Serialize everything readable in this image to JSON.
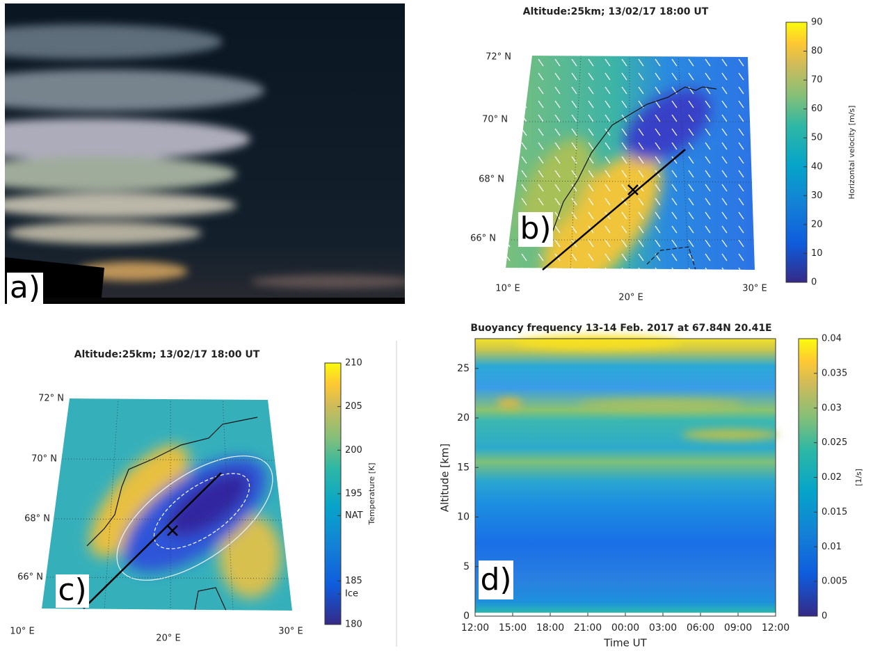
{
  "panels": {
    "a": {
      "label": "a)"
    },
    "b": {
      "label": "b)",
      "title": "Altitude:25km; 13/02/17 18:00 UT",
      "lat_labels": [
        "72° N",
        "70° N",
        "68° N",
        "66° N"
      ],
      "lon_labels": [
        "10° E",
        "20° E",
        "30° E"
      ],
      "colorbar": {
        "label": "Horizontal velocity [m/s]",
        "lim": [
          0,
          90
        ],
        "ticks": [
          0,
          10,
          20,
          30,
          40,
          50,
          60,
          70,
          80,
          90
        ]
      }
    },
    "c": {
      "label": "c)",
      "title": "Altitude:25km; 13/02/17 18:00 UT",
      "lat_labels": [
        "72° N",
        "70° N",
        "68° N",
        "66° N"
      ],
      "lon_labels": [
        "10° E",
        "20° E",
        "30° E"
      ],
      "colorbar": {
        "label": "Temperature [K]",
        "lim": [
          180,
          210
        ],
        "ticks": [
          180,
          {
            "value": 183.5,
            "label": "Ice"
          },
          185,
          {
            "value": 192.5,
            "label": "NAT"
          },
          195,
          200,
          205,
          210
        ]
      }
    },
    "d": {
      "label": "d)",
      "title": "Buoyancy frequency 13-14 Feb. 2017 at 67.84N 20.41E",
      "x_label": "Time UT",
      "y_label": "Altitude [km]",
      "xlim": [
        0,
        24
      ],
      "xticks": [
        {
          "value": 0,
          "label": "12:00"
        },
        {
          "value": 3,
          "label": "15:00"
        },
        {
          "value": 6,
          "label": "18:00"
        },
        {
          "value": 9,
          "label": "21:00"
        },
        {
          "value": 12,
          "label": "00:00"
        },
        {
          "value": 15,
          "label": "03:00"
        },
        {
          "value": 18,
          "label": "06:00"
        },
        {
          "value": 21,
          "label": "09:00"
        },
        {
          "value": 24,
          "label": "12:00"
        }
      ],
      "ylim": [
        0,
        28
      ],
      "yticks": [
        0,
        5,
        10,
        15,
        20,
        25
      ],
      "colorbar": {
        "label": "[1/s]",
        "lim": [
          0,
          0.04
        ],
        "ticks": [
          0,
          0.005,
          0.01,
          0.015,
          0.02,
          0.025,
          0.03,
          0.035,
          0.04
        ]
      }
    }
  }
}
